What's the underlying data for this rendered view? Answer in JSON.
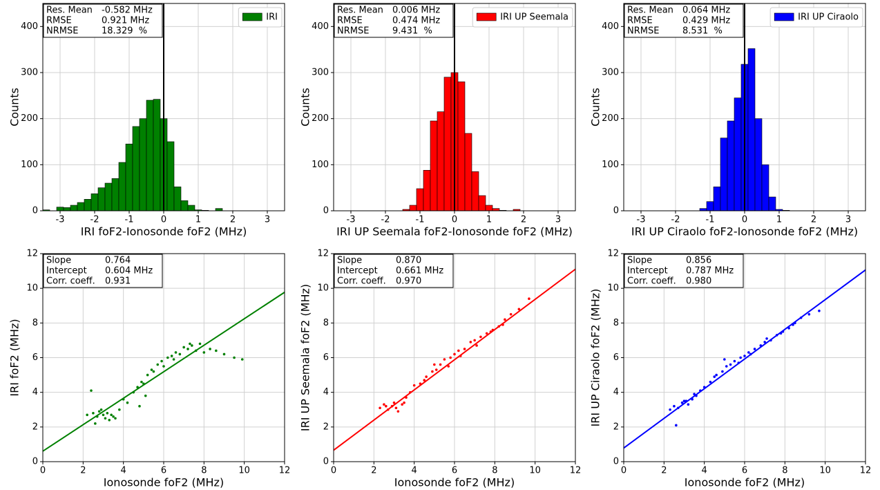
{
  "chart_data": [
    {
      "type": "histogram",
      "xlabel": "IRI foF2-Ionosonde foF2 (MHz)",
      "ylabel": "Counts",
      "bins": [
        -3.5,
        -3.3,
        -3.1,
        -2.9,
        -2.7,
        -2.5,
        -2.3,
        -2.1,
        -1.9,
        -1.7,
        -1.5,
        -1.3,
        -1.1,
        -0.9,
        -0.7,
        -0.5,
        -0.3,
        -0.1,
        0.1,
        0.3,
        0.5,
        0.7,
        0.9,
        1.1,
        1.3,
        1.5,
        1.7
      ],
      "series": [
        {
          "name": "IRI",
          "color": "#008000",
          "values": [
            2,
            0,
            8,
            7,
            12,
            18,
            25,
            37,
            50,
            60,
            70,
            105,
            145,
            183,
            200,
            240,
            242,
            200,
            150,
            52,
            22,
            12,
            2,
            1,
            0,
            5
          ]
        }
      ],
      "vline": 0,
      "xlim": [
        -3.5,
        3.5
      ],
      "xticks": [
        -3,
        -2,
        -1,
        0,
        1,
        2,
        3
      ],
      "ylim": [
        0,
        450
      ],
      "yticks": [
        0,
        100,
        200,
        300,
        400
      ],
      "grid": true,
      "legend": "upper right",
      "stats": [
        {
          "label": "Res. Mean",
          "value": -0.582,
          "value_label": "-0.582 MHz"
        },
        {
          "label": "RMSE",
          "value": 0.921,
          "value_label": "0.921 MHz"
        },
        {
          "label": "NRMSE",
          "value": 18.329,
          "value_label": "18.329  %"
        }
      ]
    },
    {
      "type": "histogram",
      "xlabel": "IRI UP Seemala foF2-Ionosonde foF2 (MHz)",
      "ylabel": "Counts",
      "bins": [
        -1.5,
        -1.3,
        -1.1,
        -0.9,
        -0.7,
        -0.5,
        -0.3,
        -0.1,
        0.1,
        0.3,
        0.5,
        0.7,
        0.9,
        1.1,
        1.3,
        1.5,
        1.7,
        1.9
      ],
      "series": [
        {
          "name": "IRI UP Seemala",
          "color": "#ff0000",
          "values": [
            3,
            12,
            48,
            88,
            195,
            215,
            290,
            300,
            280,
            168,
            85,
            33,
            12,
            5,
            1,
            0,
            3
          ]
        }
      ],
      "vline": 0,
      "xlim": [
        -3.5,
        3.5
      ],
      "xticks": [
        -3,
        -2,
        -1,
        0,
        1,
        2,
        3
      ],
      "ylim": [
        0,
        450
      ],
      "yticks": [
        0,
        100,
        200,
        300,
        400
      ],
      "grid": true,
      "legend": "upper right",
      "stats": [
        {
          "label": "Res. Mean",
          "value": 0.006,
          "value_label": "0.006 MHz"
        },
        {
          "label": "RMSE",
          "value": 0.474,
          "value_label": "0.474 MHz"
        },
        {
          "label": "NRMSE",
          "value": 9.431,
          "value_label": "9.431  %"
        }
      ]
    },
    {
      "type": "histogram",
      "xlabel": "IRI UP Ciraolo foF2-Ionosonde foF2 (MHz)",
      "ylabel": "Counts",
      "bins": [
        -1.3,
        -1.1,
        -0.9,
        -0.7,
        -0.5,
        -0.3,
        -0.1,
        0.1,
        0.3,
        0.5,
        0.7,
        0.9,
        1.1,
        1.3
      ],
      "series": [
        {
          "name": "IRI UP Ciraolo",
          "color": "#0000ff",
          "values": [
            5,
            20,
            52,
            158,
            195,
            245,
            318,
            352,
            200,
            100,
            30,
            3,
            1
          ]
        }
      ],
      "vline": 0,
      "xlim": [
        -3.5,
        3.5
      ],
      "xticks": [
        -3,
        -2,
        -1,
        0,
        1,
        2,
        3
      ],
      "ylim": [
        0,
        450
      ],
      "yticks": [
        0,
        100,
        200,
        300,
        400
      ],
      "grid": true,
      "legend": "upper right",
      "stats": [
        {
          "label": "Res. Mean",
          "value": 0.064,
          "value_label": "0.064 MHz"
        },
        {
          "label": "RMSE",
          "value": 0.429,
          "value_label": "0.429 MHz"
        },
        {
          "label": "NRMSE",
          "value": 8.531,
          "value_label": "8.531  %"
        }
      ]
    },
    {
      "type": "scatter",
      "xlabel": "Ionosonde foF2 (MHz)",
      "ylabel": "IRI foF2 (MHz)",
      "x": [
        2.2,
        2.5,
        2.7,
        2.8,
        3.0,
        3.1,
        3.2,
        3.3,
        3.5,
        2.6,
        2.9,
        3.4,
        3.8,
        4.0,
        4.2,
        4.5,
        4.7,
        4.9,
        5.0,
        5.2,
        5.4,
        5.5,
        5.7,
        5.9,
        6.0,
        6.2,
        6.4,
        6.6,
        6.8,
        7.0,
        7.2,
        7.4,
        7.6,
        7.8,
        8.0,
        8.3,
        8.6,
        9.0,
        9.5,
        9.9,
        5.1,
        4.8,
        6.5,
        7.3,
        3.6,
        2.4
      ],
      "series": [
        {
          "color": "#008000",
          "values": [
            2.7,
            2.8,
            2.6,
            2.9,
            2.7,
            2.5,
            2.8,
            2.4,
            2.6,
            2.2,
            3.0,
            2.7,
            3.0,
            3.6,
            3.4,
            4.0,
            4.3,
            4.6,
            4.5,
            5.0,
            5.3,
            5.2,
            5.6,
            5.8,
            5.5,
            6.0,
            6.1,
            6.3,
            6.2,
            6.6,
            6.5,
            6.7,
            6.4,
            6.8,
            6.3,
            6.5,
            6.4,
            6.2,
            6.0,
            5.9,
            3.8,
            3.2,
            5.9,
            6.8,
            2.5,
            4.1
          ]
        }
      ],
      "xlim": [
        0,
        12
      ],
      "xticks": [
        0,
        2,
        4,
        6,
        8,
        10,
        12
      ],
      "ylim": [
        0,
        12
      ],
      "yticks": [
        0,
        2,
        4,
        6,
        8,
        10,
        12
      ],
      "grid": true,
      "stats": [
        {
          "label": "Slope",
          "value": 0.764
        },
        {
          "label": "Intercept",
          "value": 0.604,
          "value_label": "0.604 MHz"
        },
        {
          "label": "Corr. coeff.",
          "value": 0.931
        }
      ]
    },
    {
      "type": "scatter",
      "xlabel": "Ionosonde foF2 (MHz)",
      "ylabel": "IRI UP Seemala foF2 (MHz)",
      "x": [
        2.3,
        2.5,
        2.7,
        2.9,
        3.0,
        3.2,
        3.4,
        3.6,
        3.8,
        4.0,
        4.3,
        4.6,
        4.9,
        5.1,
        5.3,
        5.5,
        5.8,
        6.0,
        6.2,
        6.5,
        6.8,
        7.0,
        7.3,
        7.6,
        7.9,
        8.2,
        8.5,
        8.8,
        9.2,
        9.7,
        2.6,
        3.1,
        3.5,
        4.5,
        5.0,
        5.7,
        6.3,
        7.1,
        7.8,
        8.4
      ],
      "series": [
        {
          "color": "#ff0000",
          "values": [
            3.1,
            3.3,
            3.0,
            3.2,
            3.4,
            2.9,
            3.3,
            3.7,
            4.0,
            4.4,
            4.5,
            4.9,
            5.2,
            5.3,
            5.6,
            5.9,
            6.0,
            6.2,
            6.4,
            6.5,
            6.9,
            7.0,
            7.2,
            7.4,
            7.6,
            7.8,
            8.2,
            8.5,
            8.8,
            9.4,
            3.2,
            3.1,
            3.4,
            4.7,
            5.6,
            5.5,
            6.1,
            6.7,
            7.5,
            7.9
          ]
        }
      ],
      "xlim": [
        0,
        12
      ],
      "xticks": [
        0,
        2,
        4,
        6,
        8,
        10,
        12
      ],
      "ylim": [
        0,
        12
      ],
      "yticks": [
        0,
        2,
        4,
        6,
        8,
        10,
        12
      ],
      "grid": true,
      "stats": [
        {
          "label": "Slope",
          "value": 0.87,
          "value_label": "0.870"
        },
        {
          "label": "Intercept",
          "value": 0.661,
          "value_label": "0.661 MHz"
        },
        {
          "label": "Corr. coeff.",
          "value": 0.97,
          "value_label": "0.970"
        }
      ]
    },
    {
      "type": "scatter",
      "xlabel": "Ionosonde foF2 (MHz)",
      "ylabel": "IRI UP Ciraolo foF2 (MHz)",
      "x": [
        2.3,
        2.5,
        2.7,
        2.9,
        3.0,
        3.2,
        3.4,
        3.6,
        3.8,
        4.0,
        4.3,
        4.6,
        4.9,
        5.1,
        5.3,
        5.5,
        5.8,
        6.0,
        6.2,
        6.5,
        6.8,
        7.0,
        7.3,
        7.6,
        7.9,
        8.2,
        8.5,
        8.8,
        9.2,
        9.7,
        2.6,
        3.1,
        3.5,
        4.5,
        5.0,
        5.7,
        6.3,
        7.1,
        7.8,
        8.4
      ],
      "series": [
        {
          "color": "#0000ff",
          "values": [
            3.0,
            3.2,
            3.1,
            3.4,
            3.5,
            3.3,
            3.6,
            3.8,
            4.1,
            4.3,
            4.6,
            5.0,
            5.2,
            5.5,
            5.6,
            5.8,
            6.0,
            6.1,
            6.3,
            6.5,
            6.7,
            6.9,
            7.0,
            7.3,
            7.5,
            7.7,
            8.0,
            8.3,
            8.5,
            8.7,
            2.1,
            3.5,
            3.9,
            4.9,
            5.9,
            5.7,
            6.2,
            7.1,
            7.4,
            7.9
          ]
        }
      ],
      "xlim": [
        0,
        12
      ],
      "xticks": [
        0,
        2,
        4,
        6,
        8,
        10,
        12
      ],
      "ylim": [
        0,
        12
      ],
      "yticks": [
        0,
        2,
        4,
        6,
        8,
        10,
        12
      ],
      "grid": true,
      "stats": [
        {
          "label": "Slope",
          "value": 0.856
        },
        {
          "label": "Intercept",
          "value": 0.787,
          "value_label": "0.787 MHz"
        },
        {
          "label": "Corr. coeff.",
          "value": 0.98,
          "value_label": "0.980"
        }
      ]
    }
  ]
}
